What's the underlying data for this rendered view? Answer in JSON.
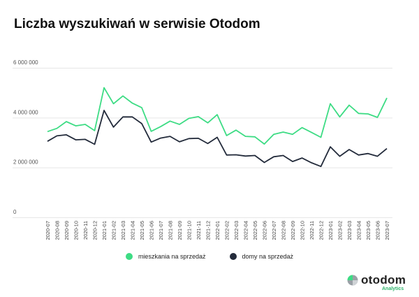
{
  "chart_data": {
    "type": "line",
    "title": "Liczba wyszukiwań w serwisie Otodom",
    "x": [
      "2020-07",
      "2020-08",
      "2020-09",
      "2020-10",
      "2020-11",
      "2020-12",
      "2021-01",
      "2021-02",
      "2021-03",
      "2021-04",
      "2021-05",
      "2021-06",
      "2021-07",
      "2021-08",
      "2021-09",
      "2021-10",
      "2021-11",
      "2021-12",
      "2022-01",
      "2022-02",
      "2022-03",
      "2022-04",
      "2022-05",
      "2022-06",
      "2022-07",
      "2022-08",
      "2022-09",
      "2022-10",
      "2022-11",
      "2022-12",
      "2023-01",
      "2023-02",
      "2023-03",
      "2023-04",
      "2023-05",
      "2023-06",
      "2023-07"
    ],
    "ylim": [
      0,
      6000000
    ],
    "yticks": [
      0,
      2000000,
      4000000,
      6000000
    ],
    "ytick_labels": [
      "0",
      "2 000 000",
      "4 000 000",
      "6 000 000"
    ],
    "grid": true,
    "legend_position": "bottom",
    "series": [
      {
        "name": "mieszkania na sprzedaż",
        "color": "#3ddc84",
        "values": [
          3440000,
          3570000,
          3840000,
          3670000,
          3730000,
          3480000,
          5200000,
          4560000,
          4870000,
          4580000,
          4400000,
          3450000,
          3640000,
          3860000,
          3730000,
          3970000,
          4040000,
          3790000,
          4120000,
          3280000,
          3500000,
          3250000,
          3230000,
          2940000,
          3330000,
          3420000,
          3330000,
          3600000,
          3410000,
          3210000,
          4560000,
          4030000,
          4500000,
          4170000,
          4150000,
          4010000,
          4790000
        ]
      },
      {
        "name": "domy na sprzedaż",
        "color": "#232b3b",
        "values": [
          3050000,
          3270000,
          3310000,
          3110000,
          3130000,
          2930000,
          4290000,
          3620000,
          4030000,
          4030000,
          3760000,
          3020000,
          3180000,
          3250000,
          3030000,
          3160000,
          3170000,
          2960000,
          3210000,
          2500000,
          2510000,
          2460000,
          2480000,
          2200000,
          2430000,
          2480000,
          2240000,
          2380000,
          2190000,
          2040000,
          2830000,
          2450000,
          2720000,
          2500000,
          2560000,
          2450000,
          2760000
        ]
      }
    ]
  },
  "logo": {
    "name": "otodom",
    "sub": "Analytics",
    "colors": {
      "green": "#3ddc84",
      "gray": "#9aa0a6"
    }
  }
}
